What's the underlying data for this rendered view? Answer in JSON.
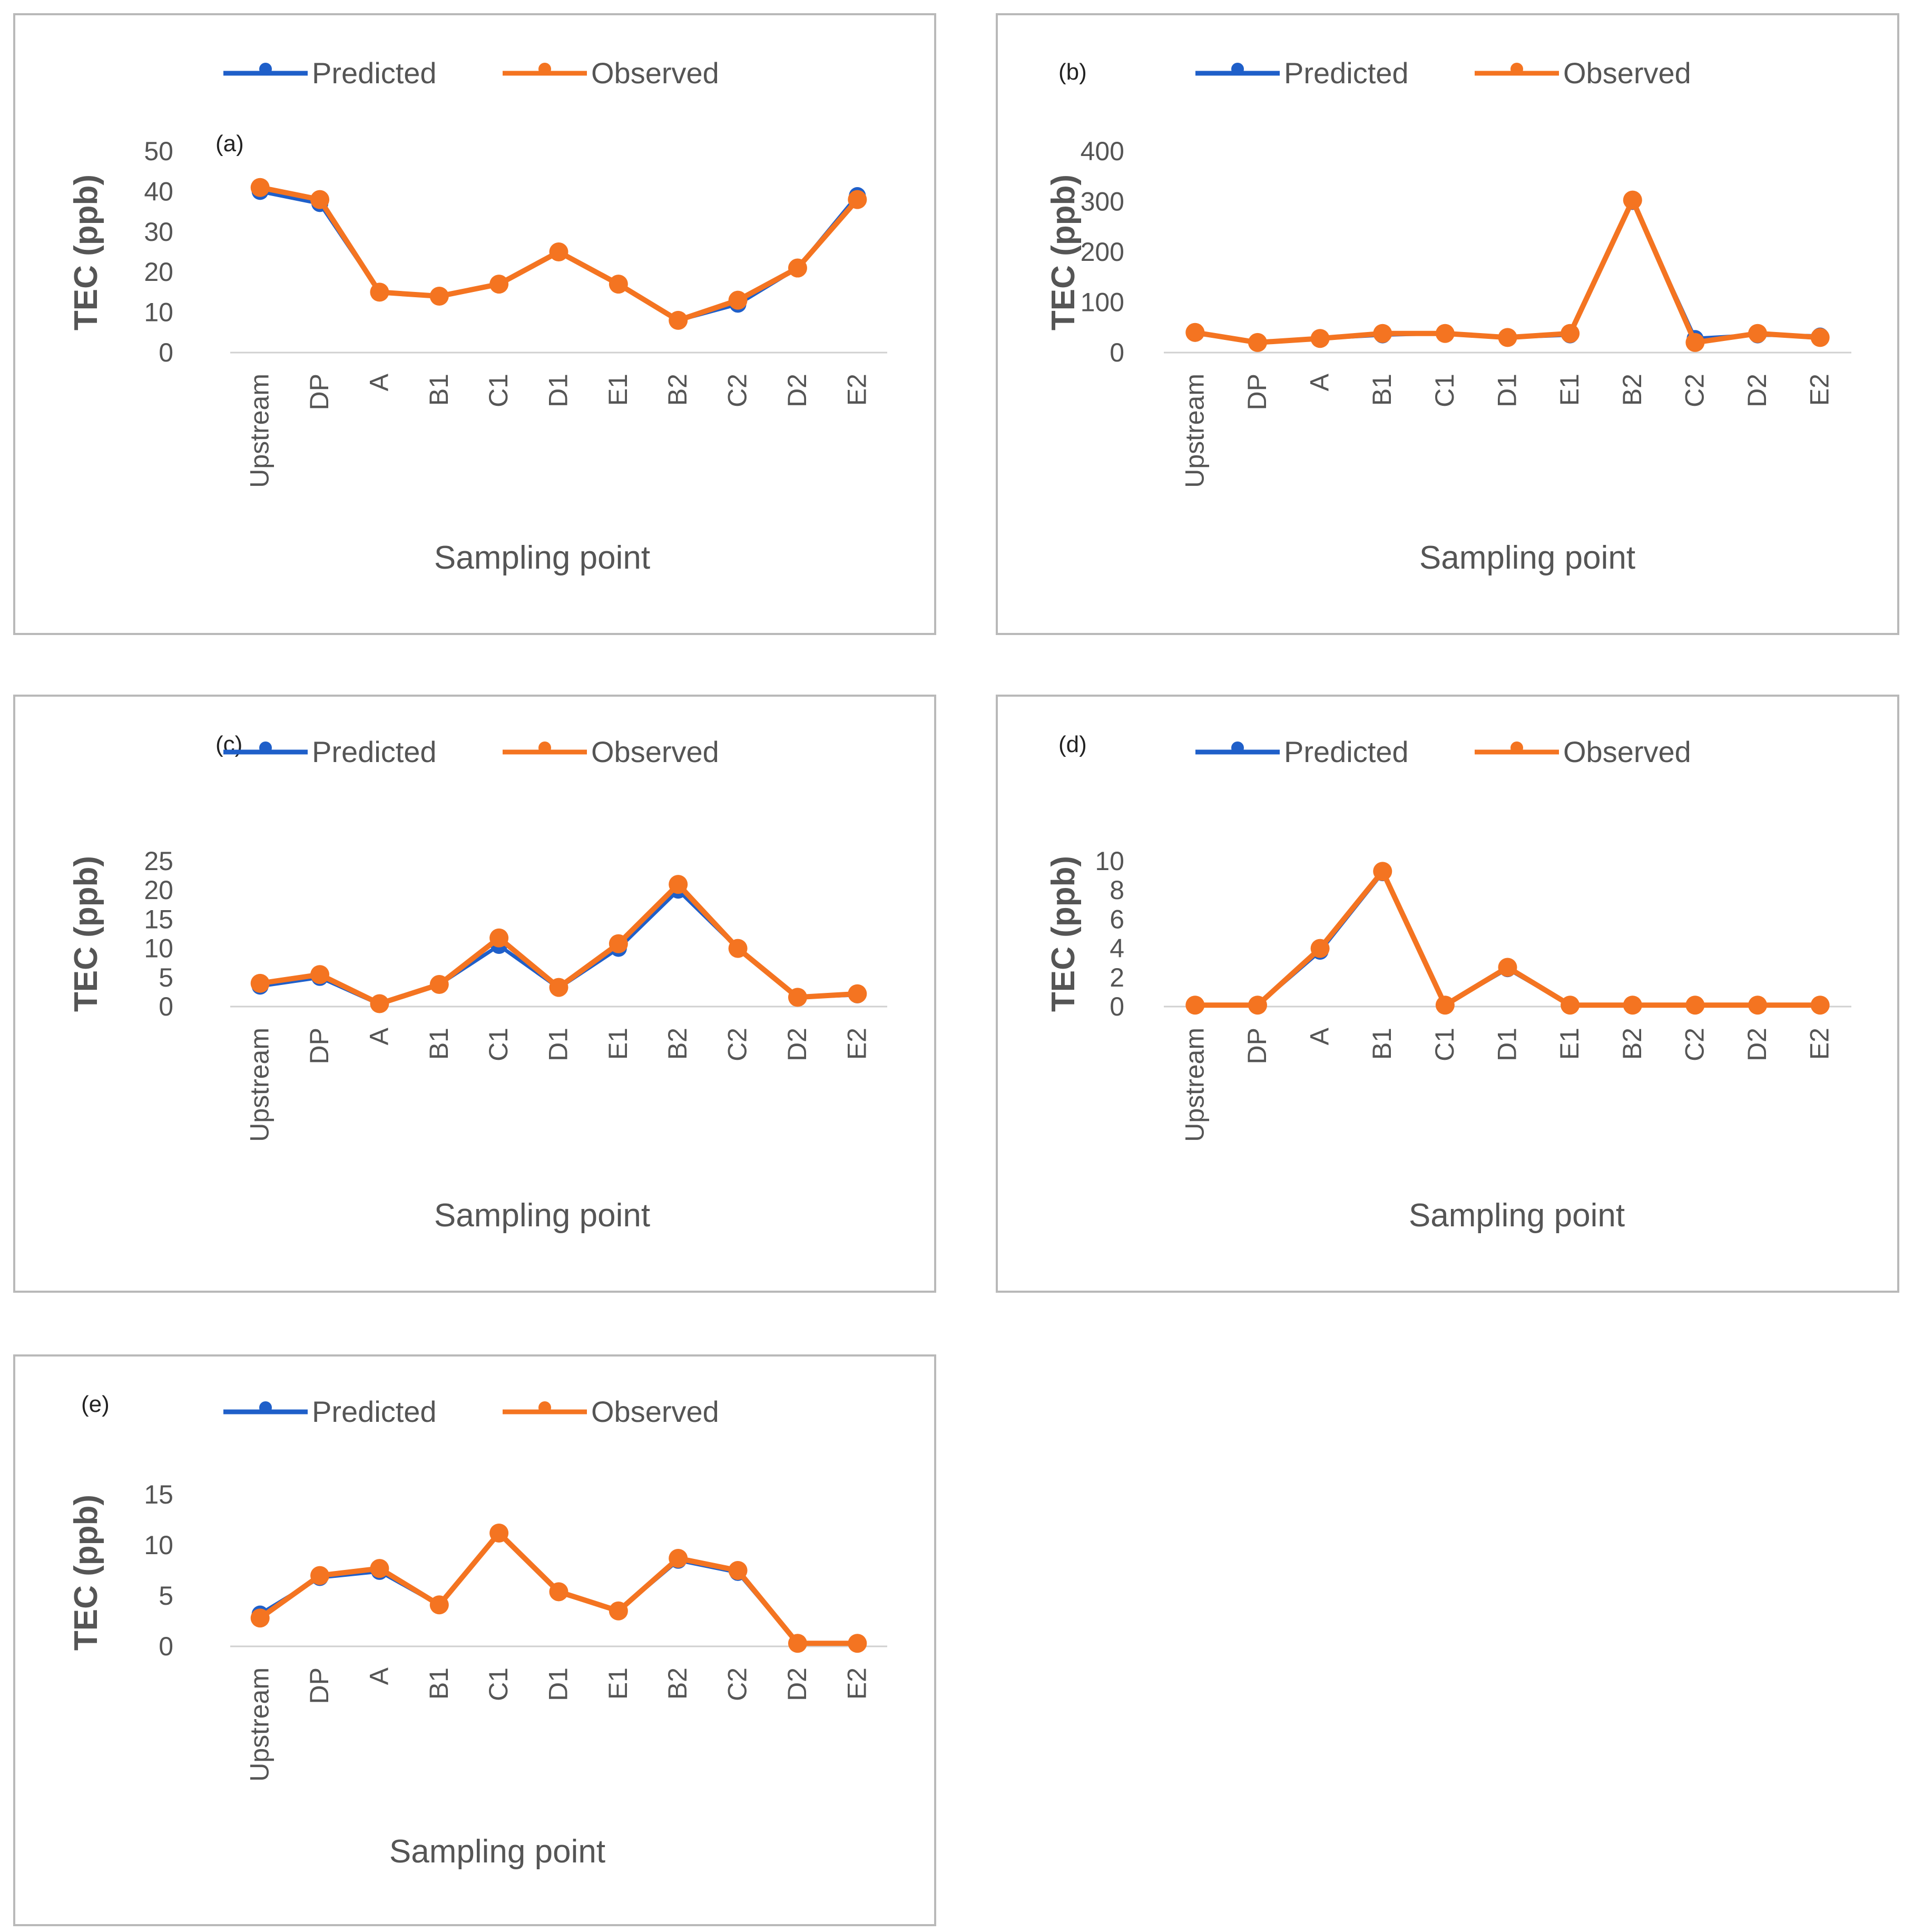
{
  "colors": {
    "predicted": "#1f5fc9",
    "observed": "#f47421",
    "axis": "#d0d0d0",
    "border": "#b9b9b9"
  },
  "chart_data": [
    {
      "panel": "(a)",
      "type": "line",
      "categories": [
        "Upstream",
        "DP",
        "A",
        "B1",
        "C1",
        "D1",
        "E1",
        "B2",
        "C2",
        "D2",
        "E2"
      ],
      "xlabel": "Sampling point",
      "ylabel": "TEC (ppb)",
      "ylim": [
        0,
        50
      ],
      "yticks": [
        "0",
        "10",
        "20",
        "30",
        "40",
        "50"
      ],
      "legend": [
        "Predicted",
        "Observed"
      ],
      "series": [
        {
          "name": "Predicted",
          "values": [
            40,
            37,
            15,
            14,
            17,
            25,
            17,
            8,
            12,
            21,
            39
          ]
        },
        {
          "name": "Observed",
          "values": [
            41,
            38,
            15,
            14,
            17,
            25,
            17,
            8,
            13,
            21,
            38
          ]
        }
      ]
    },
    {
      "panel": "(b)",
      "type": "line",
      "categories": [
        "Upstream",
        "DP",
        "A",
        "B1",
        "C1",
        "D1",
        "E1",
        "B2",
        "C2",
        "D2",
        "E2"
      ],
      "xlabel": "Sampling point",
      "ylabel": "TEC (ppb)",
      "ylim": [
        0,
        400
      ],
      "yticks": [
        "0",
        "100",
        "200",
        "300",
        "400"
      ],
      "legend": [
        "Predicted",
        "Observed"
      ],
      "series": [
        {
          "name": "Predicted",
          "values": [
            38,
            20,
            28,
            35,
            38,
            30,
            35,
            300,
            28,
            35,
            33
          ]
        },
        {
          "name": "Observed",
          "values": [
            40,
            20,
            28,
            38,
            38,
            30,
            38,
            303,
            20,
            38,
            30
          ]
        }
      ]
    },
    {
      "panel": "(c)",
      "type": "line",
      "categories": [
        "Upstream",
        "DP",
        "A",
        "B1",
        "C1",
        "D1",
        "E1",
        "B2",
        "C2",
        "D2",
        "E2"
      ],
      "xlabel": "Sampling point",
      "ylabel": "TEC (ppb)",
      "ylim": [
        0,
        25
      ],
      "yticks": [
        "0",
        "5",
        "10",
        "15",
        "20",
        "25"
      ],
      "legend": [
        "Predicted",
        "Observed"
      ],
      "series": [
        {
          "name": "Predicted",
          "values": [
            3.5,
            5,
            0.4,
            3.8,
            10.5,
            3.2,
            10,
            20,
            10,
            1.6,
            2
          ]
        },
        {
          "name": "Observed",
          "values": [
            4,
            5.5,
            0.5,
            3.8,
            11.8,
            3.3,
            10.8,
            21,
            10,
            1.6,
            2.2
          ]
        }
      ]
    },
    {
      "panel": "(d)",
      "type": "line",
      "categories": [
        "Upstream",
        "DP",
        "A",
        "B1",
        "C1",
        "D1",
        "E1",
        "B2",
        "C2",
        "D2",
        "E2"
      ],
      "xlabel": "Sampling point",
      "ylabel": "TEC (ppb)",
      "ylim": [
        0,
        10
      ],
      "yticks": [
        "0",
        "2",
        "4",
        "6",
        "8",
        "10"
      ],
      "legend": [
        "Predicted",
        "Observed"
      ],
      "series": [
        {
          "name": "Predicted",
          "values": [
            0.1,
            0.1,
            3.8,
            9.2,
            0.1,
            2.6,
            0.1,
            0.1,
            0.1,
            0.1,
            0.1
          ]
        },
        {
          "name": "Observed",
          "values": [
            0.1,
            0.1,
            4,
            9.3,
            0.1,
            2.7,
            0.1,
            0.1,
            0.1,
            0.1,
            0.1
          ]
        }
      ]
    },
    {
      "panel": "(e)",
      "type": "line",
      "categories": [
        "Upstream",
        "DP",
        "A",
        "B1",
        "C1",
        "D1",
        "E1",
        "B2",
        "C2",
        "D2",
        "E2"
      ],
      "xlabel": "Sampling point",
      "ylabel": "TEC (ppb)",
      "ylim": [
        0,
        15
      ],
      "yticks": [
        "0",
        "5",
        "10",
        "15"
      ],
      "legend": [
        "Predicted",
        "Observed"
      ],
      "series": [
        {
          "name": "Predicted",
          "values": [
            3.2,
            6.8,
            7.4,
            4.1,
            11.1,
            5.3,
            3.5,
            8.5,
            7.3,
            0.3,
            0.3
          ]
        },
        {
          "name": "Observed",
          "values": [
            2.8,
            7,
            7.7,
            4.1,
            11.2,
            5.4,
            3.5,
            8.7,
            7.5,
            0.3,
            0.3
          ]
        }
      ]
    }
  ]
}
